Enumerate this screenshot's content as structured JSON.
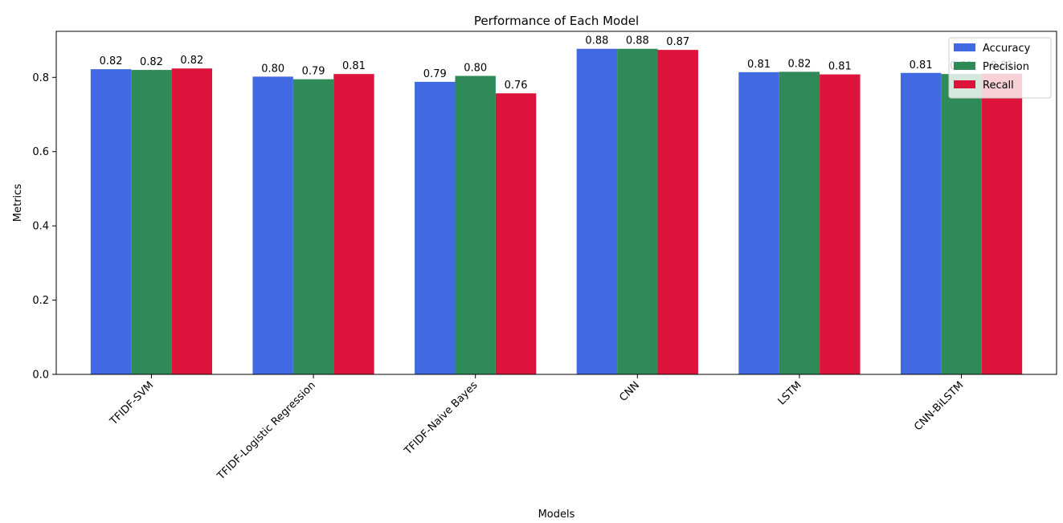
{
  "chart_data": {
    "type": "bar",
    "title": "Performance of Each Model",
    "xlabel": "Models",
    "ylabel": "Metrics",
    "ylim": [
      0,
      0.924
    ],
    "yticks": [
      "0.0",
      "0.2",
      "0.4",
      "0.6",
      "0.8"
    ],
    "categories": [
      "TFIDF-SVM",
      "TFIDF-Logistic Regression",
      "TFIDF-Naive Bayes",
      "CNN",
      "LSTM",
      "CNN-BiLSTM"
    ],
    "series": [
      {
        "name": "Accuracy",
        "color": "#4169e1",
        "values": [
          0.822,
          0.802,
          0.788,
          0.877,
          0.814,
          0.812
        ],
        "labels": [
          "0.82",
          "0.80",
          "0.79",
          "0.88",
          "0.81",
          "0.81"
        ]
      },
      {
        "name": "Precision",
        "color": "#2e8b57",
        "values": [
          0.82,
          0.795,
          0.804,
          0.877,
          0.815,
          0.809
        ],
        "labels": [
          "0.82",
          "0.79",
          "0.80",
          "0.88",
          "0.82",
          "0.81"
        ]
      },
      {
        "name": "Recall",
        "color": "#dc143c",
        "values": [
          0.824,
          0.809,
          0.757,
          0.874,
          0.808,
          0.81
        ],
        "labels": [
          "0.82",
          "0.81",
          "0.76",
          "0.87",
          "0.81",
          "0.81"
        ]
      }
    ],
    "legend": "top-right",
    "grid": false
  }
}
